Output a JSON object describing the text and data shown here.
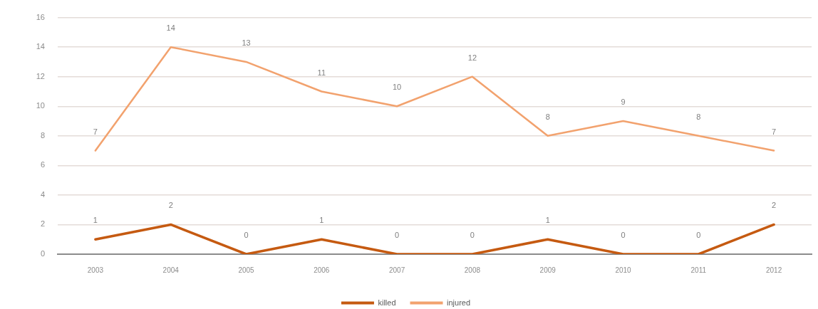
{
  "chart_data": {
    "type": "line",
    "categories": [
      "2003",
      "2004",
      "2005",
      "2006",
      "2007",
      "2008",
      "2009",
      "2010",
      "2011",
      "2012"
    ],
    "series": [
      {
        "name": "killed",
        "color": "#c55a11",
        "values": [
          1,
          2,
          0,
          1,
          0,
          0,
          1,
          0,
          0,
          2
        ]
      },
      {
        "name": "injured",
        "color": "#f2a26e",
        "values": [
          7,
          14,
          13,
          11,
          10,
          12,
          8,
          9,
          8,
          7
        ]
      }
    ],
    "ylim": [
      0,
      16
    ],
    "yticks": [
      0,
      2,
      4,
      6,
      8,
      10,
      12,
      14,
      16
    ],
    "grid": "y",
    "legend": "bottom",
    "data_labels": true,
    "marker": "none",
    "line_style": "solid"
  }
}
